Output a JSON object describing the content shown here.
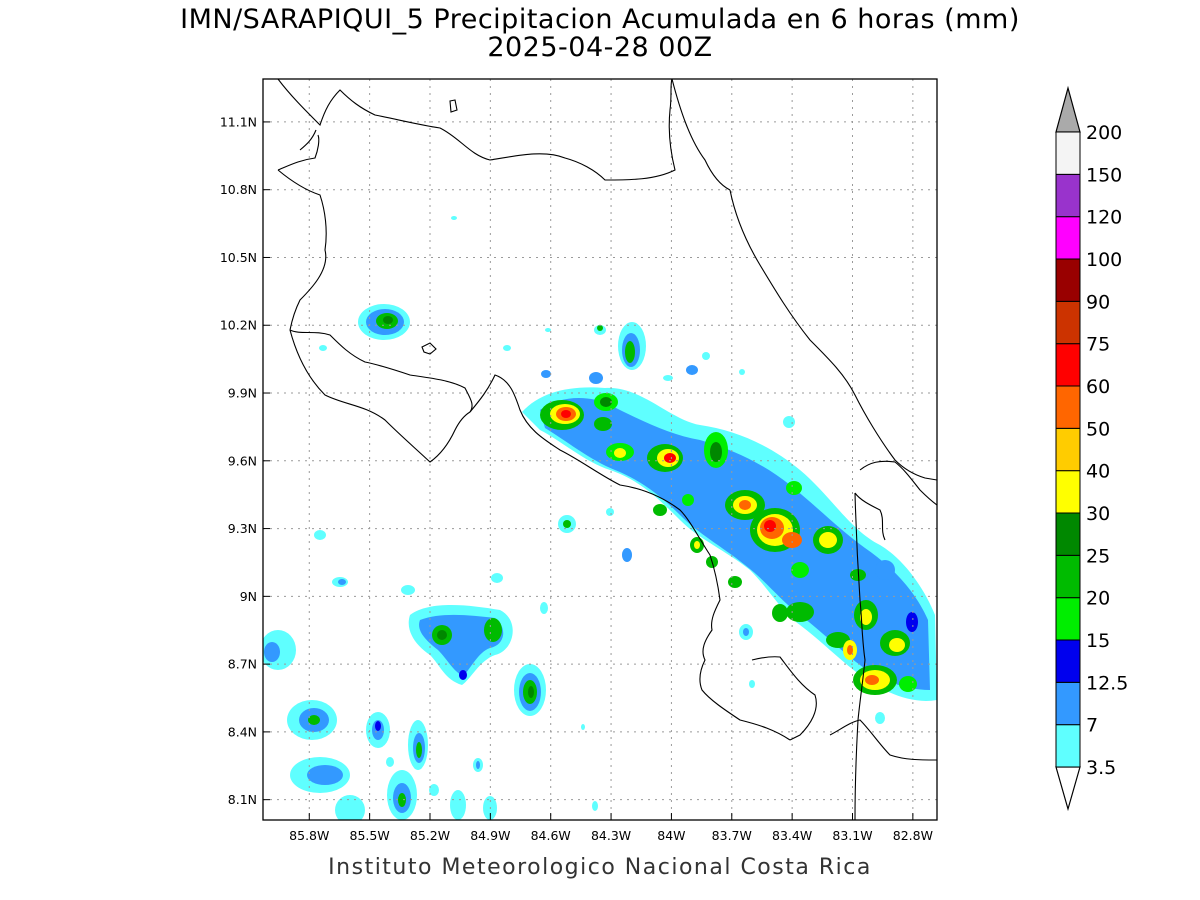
{
  "title": {
    "line1": "IMN/SARAPIQUI_5 Precipitacion Acumulada en 6 horas (mm)",
    "line2": "2025-04-28 00Z"
  },
  "footer": "Instituto Meteorologico Nacional Costa Rica",
  "map": {
    "lon_range": [
      -86.03,
      -82.68
    ],
    "lat_range": [
      8.01,
      11.29
    ],
    "lat_ticks": [
      "11.1N",
      "10.8N",
      "10.5N",
      "10.2N",
      "9.9N",
      "9.6N",
      "9.3N",
      "9N",
      "8.7N",
      "8.4N",
      "8.1N"
    ],
    "lat_values": [
      11.1,
      10.8,
      10.5,
      10.2,
      9.9,
      9.6,
      9.3,
      9.0,
      8.7,
      8.4,
      8.1
    ],
    "lon_ticks": [
      "85.8W",
      "85.5W",
      "85.2W",
      "84.9W",
      "84.6W",
      "84.3W",
      "84W",
      "83.7W",
      "83.4W",
      "83.1W",
      "82.8W"
    ],
    "lon_values": [
      -85.8,
      -85.5,
      -85.2,
      -84.9,
      -84.6,
      -84.3,
      -84.0,
      -83.7,
      -83.4,
      -83.1,
      -82.8
    ],
    "grid": true
  },
  "colorbar": {
    "labels": [
      "3.5",
      "7",
      "12.5",
      "15",
      "20",
      "25",
      "30",
      "40",
      "50",
      "60",
      "75",
      "90",
      "100",
      "120",
      "150",
      "200"
    ],
    "colors": [
      "#5fffff",
      "#3399ff",
      "#0000ee",
      "#00ee00",
      "#00bb00",
      "#008800",
      "#ffff00",
      "#ffcc00",
      "#ff6600",
      "#ff0000",
      "#cc3300",
      "#990000",
      "#ff00ff",
      "#9933cc",
      "#f4f4f4"
    ],
    "over_color": "#aaaaaa",
    "under_color": "#ffffff"
  }
}
